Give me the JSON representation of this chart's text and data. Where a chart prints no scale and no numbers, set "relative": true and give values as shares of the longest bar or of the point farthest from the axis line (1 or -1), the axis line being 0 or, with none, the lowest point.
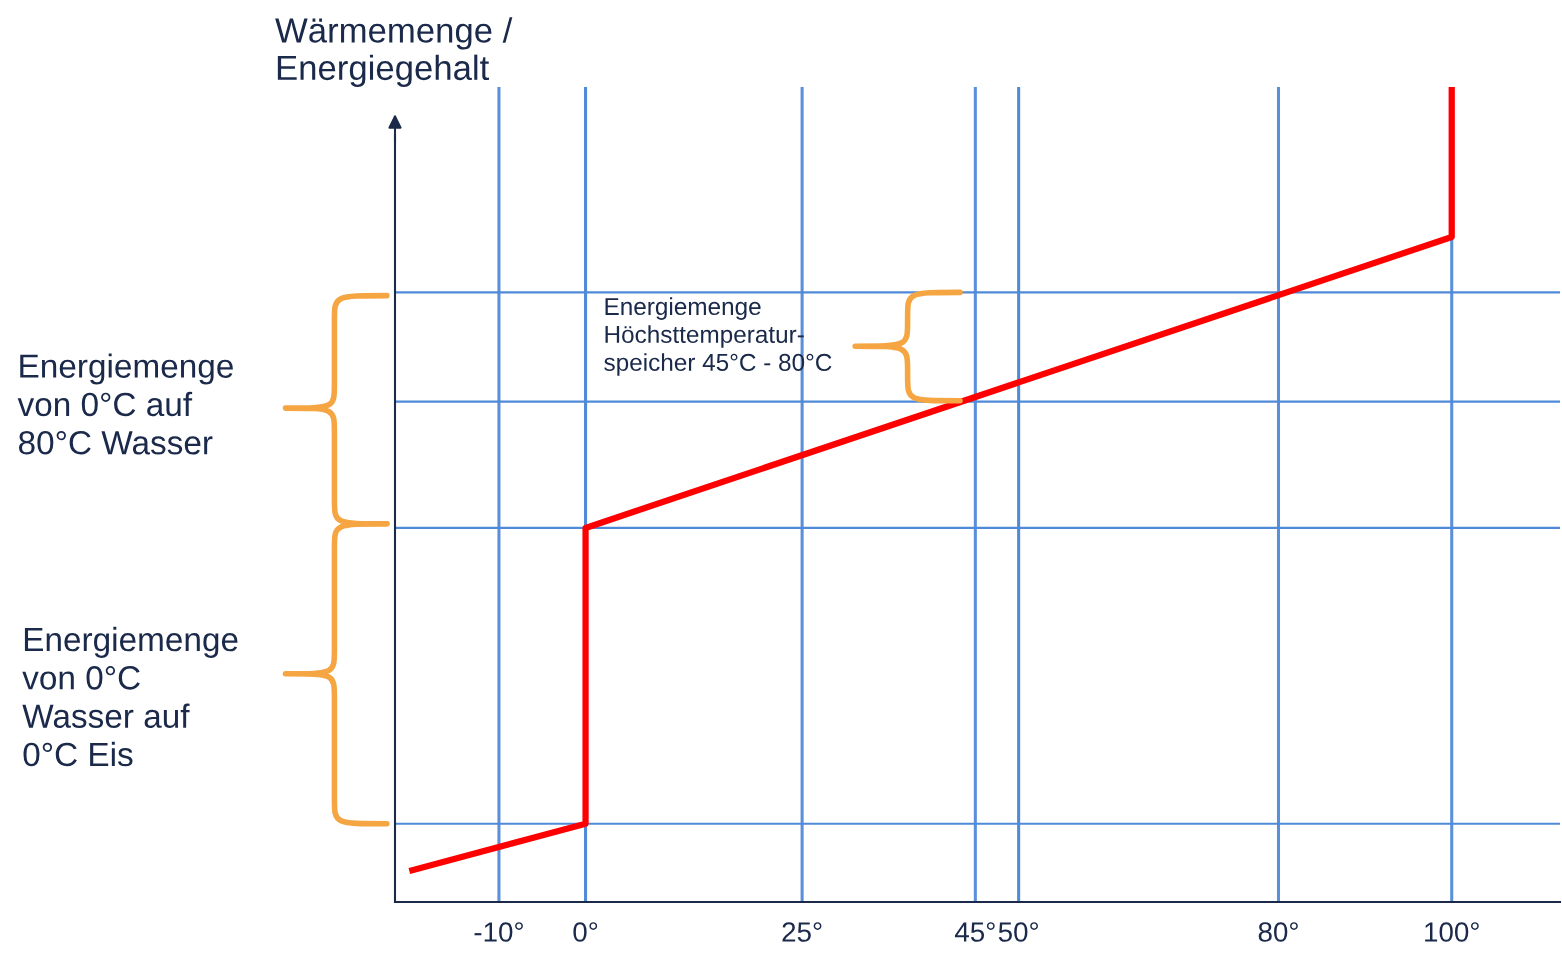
{
  "chart_data": {
    "type": "line",
    "relative": true,
    "ylabel": "Wärmemenge /\nEnergiegehalt",
    "xlim": [
      -22,
      112.5
    ],
    "xticks": [
      {
        "value": -10,
        "label": "-10°"
      },
      {
        "value": 0,
        "label": "0°"
      },
      {
        "value": 25,
        "label": "25°"
      },
      {
        "value": 45,
        "label": "45°"
      },
      {
        "value": 50,
        "label": "50°"
      },
      {
        "value": 80,
        "label": "80°"
      },
      {
        "value": 100,
        "label": "100°"
      }
    ],
    "series": [
      {
        "color": "#ff0000",
        "x": [
          -20,
          0,
          0,
          100,
          100
        ],
        "values": [
          0.039,
          0.096,
          0.459,
          0.816,
          1.0
        ]
      }
    ],
    "ref_lines": [
      {
        "axis": "x",
        "value": -10,
        "color": "#5b8fd9"
      },
      {
        "axis": "x",
        "value": 0,
        "color": "#4f8ad8"
      },
      {
        "axis": "x",
        "value": 25,
        "color": "#5b8fd9"
      },
      {
        "axis": "x",
        "value": 45,
        "color": "#5b8fd9"
      },
      {
        "axis": "x",
        "value": 50,
        "color": "#4f8ad8"
      },
      {
        "axis": "x",
        "value": 80,
        "color": "#5b8fd9"
      },
      {
        "axis": "x",
        "value": 100,
        "color": "#5b8fd9"
      },
      {
        "axis": "y",
        "value": 0.096,
        "color": "#4f8ad8"
      },
      {
        "axis": "y",
        "value": 0.459,
        "color": "#4f8ad8"
      },
      {
        "axis": "y",
        "value": 0.614,
        "color": "#4f8ad8"
      },
      {
        "axis": "y",
        "value": 0.748,
        "color": "#4f8ad8"
      }
    ],
    "annotations": [
      "Energiemenge\nvon 0°C auf\n80°C Wasser",
      "Energiemenge\nvon 0°C\nWasser auf\n0°C Eis",
      "Energiemenge\nHöchsttemperatur-\nspeicher 45°C - 80°C"
    ]
  }
}
